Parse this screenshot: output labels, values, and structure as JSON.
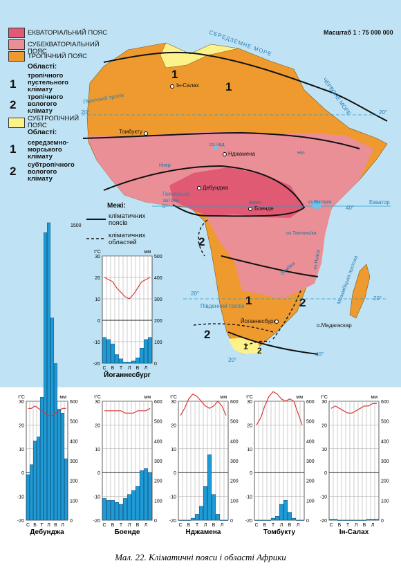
{
  "legend": {
    "belts": [
      {
        "name": "ЕКВАТОРІАЛЬНИЙ ПОЯС",
        "color": "#e05a73"
      },
      {
        "name": "СУБЕКВАТОРІАЛЬНИЙ ПОЯС",
        "color": "#eb8f97"
      },
      {
        "name": "ТРОПІЧНИЙ ПОЯС",
        "color": "#ee9a2e"
      },
      {
        "name": "СУБТРОПІЧНИЙ ПОЯС",
        "color": "#fbf28a"
      }
    ],
    "regions_heading_1": "Області:",
    "tropical_regions": [
      {
        "num": "1",
        "text": "тропічного пустельного клімату"
      },
      {
        "num": "2",
        "text": "тропічного вологого клімату"
      }
    ],
    "regions_heading_2": "Області:",
    "subtropical_regions": [
      {
        "num": "1",
        "text": "середземно-морського клімату"
      },
      {
        "num": "2",
        "text": "субтропічного вологого клімату"
      }
    ],
    "boundaries_heading": "Межі:",
    "boundary_belts": "кліматичних поясів",
    "boundary_regions": "кліматичних областей"
  },
  "scale": "Масштаб 1 : 75 000 000",
  "map_labels": {
    "sea_top": "СЕРЕДЗЕМНЕ МОРЕ",
    "red_sea": "ЧЕРВОНЕ МОРЕ",
    "tropic_north": "Північний тропік",
    "tropic_south": "Південний тропік",
    "equator": "Екватор",
    "gulf": "Гвінейська затока",
    "channel": "Мозамбіцька протока",
    "madagascar": "о.Мадагаскар",
    "lake_chad": "оз.Чад",
    "lake_victoria": "оз.Вікторія",
    "lake_tanganyika": "оз.Танганьїка",
    "lake_nyasa": "оз.Ньяса",
    "congo": "Конго",
    "zambezi": "Замбезі",
    "nile": "Ніл",
    "niger": "Нігер",
    "deg_20n_left": "20°",
    "deg_20n_right": "20°",
    "deg_0": "0°",
    "deg_20s_left": "20°",
    "deg_20s_right": "20°",
    "deg_40s": "40°",
    "deg_20e": "20°",
    "deg_40e": "40°"
  },
  "cities": [
    "Ін-Салах",
    "Томбукту",
    "Нджамена",
    "Дебунджа",
    "Боенде",
    "Йоганнесбург"
  ],
  "map_numbers": [
    "1",
    "1",
    "1",
    "2",
    "2",
    "2",
    "1",
    "2"
  ],
  "chart_axis": {
    "t_unit": "t°C",
    "p_unit": "мм"
  },
  "chart_data": [
    {
      "type": "bar+line",
      "station": "Дебунджа",
      "months": [
        "С",
        "Б",
        "Т",
        "К",
        "Т",
        "Л",
        "Л",
        "С",
        "В",
        "Ж",
        "Л",
        "Г"
      ],
      "month_ticks": [
        "С",
        "Б",
        "Т",
        "Л",
        "В",
        "Л"
      ],
      "precip_mm": [
        230,
        280,
        400,
        420,
        620,
        1450,
        1500,
        1020,
        790,
        560,
        540,
        310
      ],
      "temp_c": [
        27,
        27,
        28,
        27,
        26,
        25,
        24,
        24,
        25,
        26,
        27,
        27
      ],
      "p_max_label": "1500",
      "ylim_t": [
        -20,
        30
      ],
      "ylim_p": [
        0,
        600
      ],
      "t_ticks": [
        "30",
        "20",
        "10",
        "0",
        "-10",
        "-20"
      ],
      "p_ticks": [
        "600",
        "500",
        "400",
        "300",
        "200",
        "100",
        "0"
      ]
    },
    {
      "type": "bar+line",
      "station": "Боенде",
      "months": [
        "С",
        "Б",
        "Т",
        "К",
        "Т",
        "Л",
        "Л",
        "С",
        "В",
        "Ж",
        "Л",
        "Г"
      ],
      "month_ticks": [
        "С",
        "Б",
        "Т",
        "Л",
        "В",
        "Л"
      ],
      "precip_mm": [
        110,
        100,
        100,
        90,
        80,
        110,
        130,
        150,
        170,
        250,
        260,
        240
      ],
      "temp_c": [
        26,
        26,
        26,
        26,
        26,
        25,
        25,
        25,
        26,
        26,
        26,
        27
      ],
      "ylim_t": [
        -20,
        30
      ],
      "ylim_p": [
        0,
        600
      ],
      "t_ticks": [
        "30",
        "20",
        "10",
        "0",
        "-10",
        "-20"
      ],
      "p_ticks": [
        "600",
        "500",
        "400",
        "300",
        "200",
        "100",
        "0"
      ]
    },
    {
      "type": "bar+line",
      "station": "Нджамена",
      "months": [
        "С",
        "Б",
        "Т",
        "К",
        "Т",
        "Л",
        "Л",
        "С",
        "В",
        "Ж",
        "Л",
        "Г"
      ],
      "month_ticks": [
        "С",
        "Б",
        "Т",
        "Л",
        "В",
        "Л"
      ],
      "precip_mm": [
        0,
        0,
        0,
        10,
        30,
        70,
        170,
        330,
        130,
        30,
        0,
        0
      ],
      "temp_c": [
        24,
        27,
        31,
        33,
        32,
        30,
        28,
        27,
        28,
        30,
        28,
        24
      ],
      "ylim_t": [
        -20,
        30
      ],
      "ylim_p": [
        0,
        600
      ],
      "t_ticks": [
        "30",
        "20",
        "10",
        "0",
        "-10",
        "-20"
      ],
      "p_ticks": [
        "600",
        "500",
        "400",
        "300",
        "200",
        "100",
        "0"
      ]
    },
    {
      "type": "bar+line",
      "station": "Томбукту",
      "months": [
        "С",
        "Б",
        "Т",
        "К",
        "Т",
        "Л",
        "Л",
        "С",
        "В",
        "Ж",
        "Л",
        "Г"
      ],
      "month_ticks": [
        "С",
        "Б",
        "Т",
        "Л",
        "В",
        "Л"
      ],
      "precip_mm": [
        0,
        0,
        0,
        0,
        10,
        20,
        80,
        100,
        40,
        10,
        0,
        0
      ],
      "temp_c": [
        20,
        23,
        28,
        32,
        34,
        33,
        31,
        30,
        31,
        30,
        25,
        20
      ],
      "ylim_t": [
        -20,
        30
      ],
      "ylim_p": [
        0,
        600
      ],
      "t_ticks": [
        "30",
        "20",
        "10",
        "0",
        "-10",
        "-20"
      ],
      "p_ticks": [
        "600",
        "500",
        "400",
        "300",
        "200",
        "100",
        "0"
      ]
    },
    {
      "type": "bar+line",
      "station": "Ін-Салах",
      "months": [
        "С",
        "Б",
        "Т",
        "К",
        "Т",
        "Л",
        "Л",
        "С",
        "В",
        "Ж",
        "Л",
        "Г"
      ],
      "month_ticks": [
        "С",
        "Б",
        "Т",
        "Л",
        "В",
        "Л"
      ],
      "precip_mm": [
        5,
        5,
        0,
        0,
        0,
        0,
        0,
        0,
        0,
        5,
        5,
        5
      ],
      "temp_c": [
        27,
        28,
        27,
        26,
        25,
        25,
        26,
        27,
        28,
        28,
        29,
        29
      ],
      "ylim_t": [
        -20,
        30
      ],
      "ylim_p": [
        0,
        600
      ],
      "t_ticks": [
        "30",
        "20",
        "10",
        "0",
        "-10",
        "-20"
      ],
      "p_ticks": [
        "600",
        "500",
        "400",
        "300",
        "200",
        "100",
        "0"
      ]
    },
    {
      "type": "bar+line",
      "station": "Йоганнесбург",
      "months": [
        "С",
        "Б",
        "Т",
        "К",
        "Т",
        "Л",
        "Л",
        "С",
        "В",
        "Ж",
        "Л",
        "Г"
      ],
      "month_ticks": [
        "С",
        "Б",
        "Т",
        "Л",
        "В",
        "Л"
      ],
      "precip_mm": [
        120,
        110,
        90,
        40,
        20,
        5,
        5,
        10,
        25,
        70,
        110,
        120
      ],
      "temp_c": [
        20,
        19,
        18,
        15,
        13,
        11,
        10,
        12,
        15,
        18,
        19,
        20
      ],
      "ylim_t": [
        -20,
        30
      ],
      "ylim_p": [
        0,
        500
      ],
      "t_ticks": [
        "30",
        "20",
        "10",
        "0",
        "-10",
        "-20"
      ],
      "p_ticks": [
        "500",
        "400",
        "300",
        "200",
        "100",
        "0"
      ]
    }
  ],
  "caption": "Мал. 22. Кліматичні пояси і області Африки"
}
